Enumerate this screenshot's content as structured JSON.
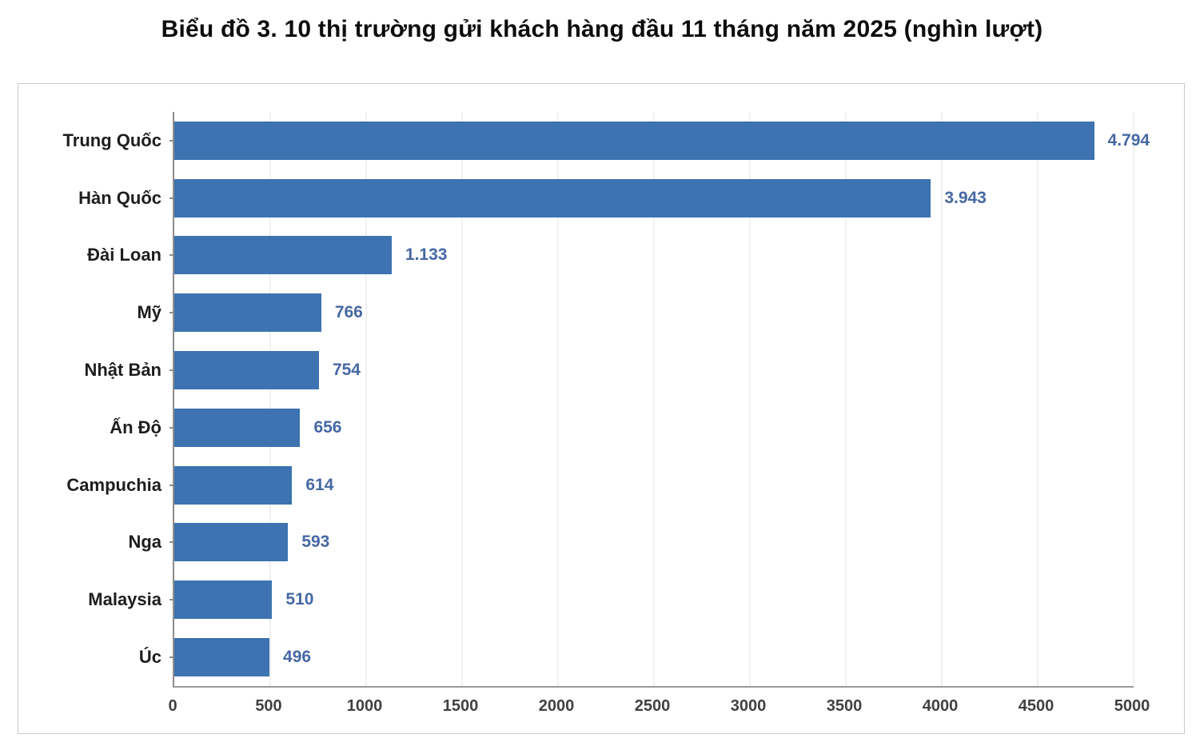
{
  "title": "Biểu đồ 3. 10 thị trường gửi khách hàng đầu 11 tháng năm 2025 (nghìn lượt)",
  "chart_data": {
    "type": "bar",
    "orientation": "horizontal",
    "title": "Biểu đồ 3. 10 thị trường gửi khách hàng đầu 11 tháng năm 2025 (nghìn lượt)",
    "categories": [
      "Trung Quốc",
      "Hàn Quốc",
      "Đài Loan",
      "Mỹ",
      "Nhật Bản",
      "Ấn Độ",
      "Campuchia",
      "Nga",
      "Malaysia",
      "Úc"
    ],
    "values": [
      4794,
      3943,
      1133,
      766,
      754,
      656,
      614,
      593,
      510,
      496
    ],
    "value_labels": [
      "4.794",
      "3.943",
      "1.133",
      "766",
      "754",
      "656",
      "614",
      "593",
      "510",
      "496"
    ],
    "xlabel": "",
    "ylabel": "",
    "xlim": [
      0,
      5000
    ],
    "x_ticks": [
      0,
      500,
      1000,
      1500,
      2000,
      2500,
      3000,
      3500,
      4000,
      4500,
      5000
    ],
    "grid": true,
    "legend": "none",
    "bar_color": "#3c73b0",
    "value_label_color": "#4668a3",
    "axis_line_color": "#8c8c8c",
    "gridline_color": "#f0f0f0"
  }
}
